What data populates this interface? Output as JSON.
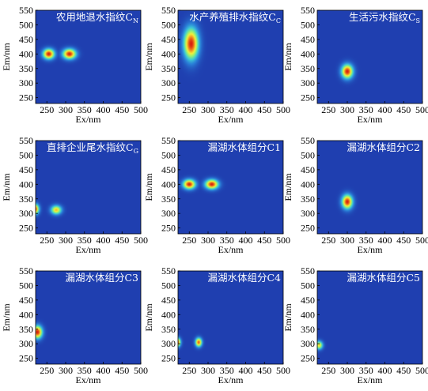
{
  "colors": {
    "background": "#1f3fb0",
    "colormap": [
      "#1f3fb0",
      "#2a7fd8",
      "#3ec9d6",
      "#8df07a",
      "#f5ef3a",
      "#f08a1f",
      "#d81e0e"
    ]
  },
  "chart_data": [
    {
      "type": "heatmap",
      "title": "农用地退水指纹C",
      "title_sub": "N",
      "xlabel": "Ex/nm",
      "ylabel": "Em/nm",
      "xlim": [
        220,
        500
      ],
      "ylim": [
        230,
        550
      ],
      "xticks": [
        "250",
        "300",
        "350",
        "400",
        "450",
        "500"
      ],
      "yticks": [
        "250",
        "300",
        "350",
        "400",
        "450",
        "500",
        "550"
      ],
      "peaks": [
        {
          "ex": 255,
          "em": 400,
          "sx": 14,
          "sy": 16,
          "intensity": 1.0
        },
        {
          "ex": 310,
          "em": 400,
          "sx": 16,
          "sy": 16,
          "intensity": 1.0
        }
      ]
    },
    {
      "type": "heatmap",
      "title": "水产养殖排水指纹C",
      "title_sub": "C",
      "xlabel": "Ex/nm",
      "ylabel": "Em/nm",
      "xlim": [
        220,
        500
      ],
      "ylim": [
        230,
        550
      ],
      "xticks": [
        "250",
        "300",
        "350",
        "400",
        "450",
        "500"
      ],
      "yticks": [
        "250",
        "300",
        "350",
        "400",
        "450",
        "500",
        "550"
      ],
      "peaks": [
        {
          "ex": 255,
          "em": 435,
          "sx": 18,
          "sy": 50,
          "intensity": 1.0
        }
      ]
    },
    {
      "type": "heatmap",
      "title": "生活污水指纹C",
      "title_sub": "S",
      "xlabel": "Ex/nm",
      "ylabel": "Em/nm",
      "xlim": [
        220,
        500
      ],
      "ylim": [
        230,
        550
      ],
      "xticks": [
        "250",
        "300",
        "350",
        "400",
        "450",
        "500"
      ],
      "yticks": [
        "250",
        "300",
        "350",
        "400",
        "450",
        "500",
        "550"
      ],
      "peaks": [
        {
          "ex": 300,
          "em": 340,
          "sx": 14,
          "sy": 22,
          "intensity": 1.0
        }
      ]
    },
    {
      "type": "heatmap",
      "title": "直排企业尾水指纹C",
      "title_sub": "G",
      "xlabel": "Ex/nm",
      "ylabel": "Em/nm",
      "xlim": [
        220,
        500
      ],
      "ylim": [
        230,
        550
      ],
      "xticks": [
        "250",
        "300",
        "350",
        "400",
        "450",
        "500"
      ],
      "yticks": [
        "250",
        "300",
        "350",
        "400",
        "450",
        "500",
        "550"
      ],
      "peaks": [
        {
          "ex": 218,
          "em": 315,
          "sx": 10,
          "sy": 16,
          "intensity": 1.0
        },
        {
          "ex": 275,
          "em": 312,
          "sx": 13,
          "sy": 14,
          "intensity": 0.75
        }
      ]
    },
    {
      "type": "heatmap",
      "title": "漏湖水体组分C1",
      "title_sub": "",
      "xlabel": "Ex/nm",
      "ylabel": "Em/nm",
      "xlim": [
        220,
        500
      ],
      "ylim": [
        230,
        550
      ],
      "xticks": [
        "250",
        "300",
        "350",
        "400",
        "450",
        "500"
      ],
      "yticks": [
        "250",
        "300",
        "350",
        "400",
        "450",
        "500",
        "550"
      ],
      "peaks": [
        {
          "ex": 250,
          "em": 400,
          "sx": 15,
          "sy": 15,
          "intensity": 1.0
        },
        {
          "ex": 310,
          "em": 400,
          "sx": 16,
          "sy": 15,
          "intensity": 1.0
        }
      ]
    },
    {
      "type": "heatmap",
      "title": "漏湖水体组分C2",
      "title_sub": "",
      "xlabel": "Ex/nm",
      "ylabel": "Em/nm",
      "xlim": [
        220,
        500
      ],
      "ylim": [
        230,
        550
      ],
      "xticks": [
        "250",
        "300",
        "350",
        "400",
        "450",
        "500"
      ],
      "yticks": [
        "250",
        "300",
        "350",
        "400",
        "450",
        "500",
        "550"
      ],
      "peaks": [
        {
          "ex": 300,
          "em": 340,
          "sx": 13,
          "sy": 22,
          "intensity": 1.0
        }
      ]
    },
    {
      "type": "heatmap",
      "title": "漏湖水体组分C3",
      "title_sub": "",
      "xlabel": "Ex/nm",
      "ylabel": "Em/nm",
      "xlim": [
        220,
        500
      ],
      "ylim": [
        230,
        550
      ],
      "xticks": [
        "250",
        "300",
        "350",
        "400",
        "450",
        "500"
      ],
      "yticks": [
        "250",
        "300",
        "350",
        "400",
        "450",
        "500",
        "550"
      ],
      "peaks": [
        {
          "ex": 225,
          "em": 340,
          "sx": 12,
          "sy": 20,
          "intensity": 1.0
        }
      ]
    },
    {
      "type": "heatmap",
      "title": "漏湖水体组分C4",
      "title_sub": "",
      "xlabel": "Ex/nm",
      "ylabel": "Em/nm",
      "xlim": [
        220,
        500
      ],
      "ylim": [
        230,
        550
      ],
      "xticks": [
        "250",
        "300",
        "350",
        "400",
        "450",
        "500"
      ],
      "yticks": [
        "250",
        "300",
        "350",
        "400",
        "450",
        "500",
        "550"
      ],
      "peaks": [
        {
          "ex": 218,
          "em": 305,
          "sx": 8,
          "sy": 14,
          "intensity": 1.0
        },
        {
          "ex": 275,
          "em": 305,
          "sx": 8,
          "sy": 14,
          "intensity": 0.9
        }
      ]
    },
    {
      "type": "heatmap",
      "title": "漏湖水体组分C5",
      "title_sub": "",
      "xlabel": "Ex/nm",
      "ylabel": "Em/nm",
      "xlim": [
        220,
        500
      ],
      "ylim": [
        230,
        550
      ],
      "xticks": [
        "250",
        "300",
        "350",
        "400",
        "450",
        "500"
      ],
      "yticks": [
        "250",
        "300",
        "350",
        "400",
        "450",
        "500",
        "550"
      ],
      "peaks": [
        {
          "ex": 225,
          "em": 295,
          "sx": 9,
          "sy": 13,
          "intensity": 0.7
        }
      ]
    }
  ]
}
